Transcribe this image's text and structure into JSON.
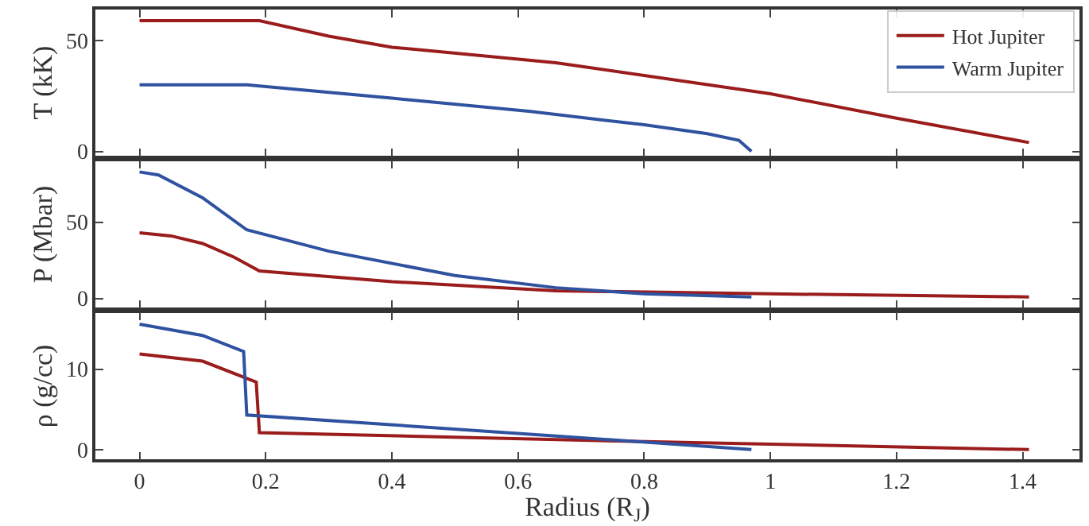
{
  "chart_data": [
    {
      "type": "line",
      "ylabel": "T (kK)",
      "xlim": [
        -0.07,
        1.49
      ],
      "xticks": [
        0,
        0.2,
        0.4,
        0.6,
        0.8,
        1.0,
        1.2,
        1.4
      ],
      "ylim": [
        -2,
        64
      ],
      "yticks": [
        0,
        50
      ],
      "tick_labels": "y",
      "legend": "top right",
      "series": [
        {
          "name": "Hot Jupiter",
          "color": "#9b1c1c",
          "x": [
            0,
            0.1,
            0.19,
            0.3,
            0.4,
            0.66,
            1.0,
            1.2,
            1.41
          ],
          "values": [
            59,
            59,
            59,
            52,
            47,
            40,
            26,
            15,
            4
          ]
        },
        {
          "name": "Warm Jupiter",
          "color": "#2f52a0",
          "x": [
            0,
            0.1,
            0.17,
            0.4,
            0.62,
            0.8,
            0.9,
            0.95,
            0.97
          ],
          "values": [
            30,
            30,
            30,
            24,
            18,
            12,
            8,
            5,
            0
          ]
        }
      ]
    },
    {
      "type": "line",
      "ylabel": "P (Mbar)",
      "xlim": [
        -0.07,
        1.49
      ],
      "xticks": [
        0,
        0.2,
        0.4,
        0.6,
        0.8,
        1.0,
        1.2,
        1.4
      ],
      "ylim": [
        -6,
        90
      ],
      "yticks": [
        0,
        50
      ],
      "tick_labels": "y",
      "series": [
        {
          "color": "#9b1c1c",
          "x": [
            0,
            0.05,
            0.1,
            0.15,
            0.19,
            0.4,
            0.66,
            1.0,
            1.41
          ],
          "values": [
            43,
            41,
            36,
            27,
            18,
            11,
            5,
            3,
            1
          ]
        },
        {
          "color": "#2f52a0",
          "x": [
            0,
            0.03,
            0.1,
            0.17,
            0.3,
            0.5,
            0.66,
            0.8,
            0.97
          ],
          "values": [
            83,
            81,
            66,
            45,
            31,
            15,
            7,
            3,
            1
          ]
        }
      ]
    },
    {
      "type": "line",
      "ylabel": "ρ (g/cc)",
      "xlabel": "Radius (R$_{J}$)",
      "xlim": [
        -0.07,
        1.49
      ],
      "xticks": [
        0,
        0.2,
        0.4,
        0.6,
        0.8,
        1.0,
        1.2,
        1.4
      ],
      "ylim": [
        -1.2,
        17
      ],
      "yticks": [
        0,
        10
      ],
      "series": [
        {
          "color": "#9b1c1c",
          "x": [
            0,
            0.1,
            0.185,
            0.19,
            0.8,
            1.41
          ],
          "values": [
            11.9,
            11,
            8.4,
            2.1,
            1.0,
            0
          ]
        },
        {
          "color": "#2f52a0",
          "x": [
            0,
            0.1,
            0.165,
            0.17,
            0.66,
            0.97
          ],
          "values": [
            15.6,
            14.2,
            12.2,
            4.3,
            1.7,
            0
          ]
        }
      ]
    }
  ]
}
